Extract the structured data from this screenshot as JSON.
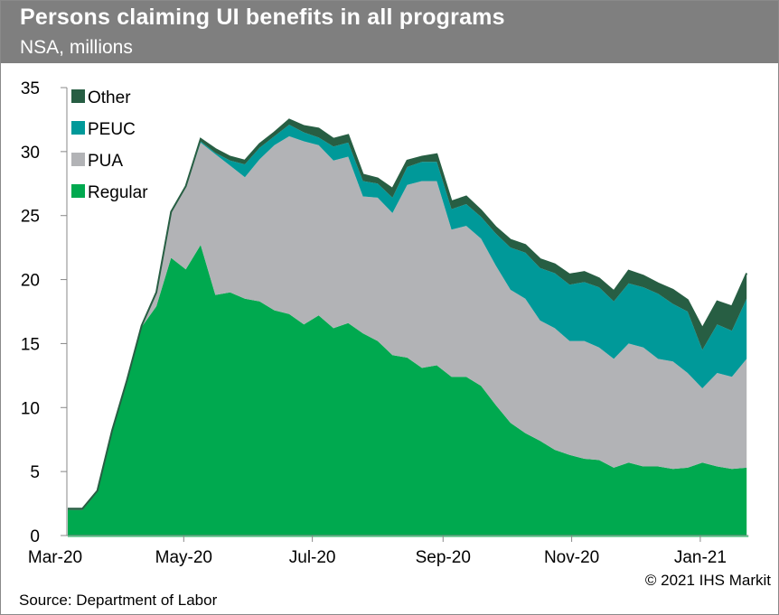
{
  "header": {
    "title": "Persons claiming UI benefits in all programs",
    "subtitle": "NSA, millions"
  },
  "footer": {
    "copyright": "© 2021 IHS Markit",
    "source": "Source: Department of Labor"
  },
  "chart_data": {
    "type": "area",
    "stacked": true,
    "title": "Persons claiming UI benefits in all programs",
    "subtitle": "NSA, millions",
    "ylim": [
      0,
      35
    ],
    "yticks": [
      0,
      5,
      10,
      15,
      20,
      25,
      30,
      35
    ],
    "xticks": [
      {
        "date": "2020-03-01",
        "label": "Mar-20"
      },
      {
        "date": "2020-05-01",
        "label": "May-20"
      },
      {
        "date": "2020-07-01",
        "label": "Jul-20"
      },
      {
        "date": "2020-09-01",
        "label": "Sep-20"
      },
      {
        "date": "2020-11-01",
        "label": "Nov-20"
      },
      {
        "date": "2021-01-01",
        "label": "Jan-21"
      }
    ],
    "grid": false,
    "legend_position": "top-left",
    "x_start": "2020-03-07",
    "x_frequency": "weekly",
    "series": [
      {
        "name": "Regular",
        "color": "#00A94F",
        "values": [
          2.0,
          2.0,
          3.4,
          8.1,
          12.0,
          16.3,
          17.9,
          21.7,
          20.8,
          22.7,
          18.8,
          19.0,
          18.5,
          18.3,
          17.6,
          17.3,
          16.5,
          17.2,
          16.2,
          16.6,
          15.8,
          15.2,
          14.1,
          13.9,
          13.1,
          13.3,
          12.4,
          12.4,
          11.7,
          10.2,
          8.8,
          8.0,
          7.4,
          6.7,
          6.3,
          6.0,
          5.9,
          5.3,
          5.7,
          5.4,
          5.4,
          5.2,
          5.3,
          5.7,
          5.4,
          5.2,
          5.3
        ]
      },
      {
        "name": "PUA",
        "color": "#B2B3B6",
        "values": [
          0,
          0,
          0,
          0,
          0,
          0,
          1.0,
          3.5,
          6.4,
          8.0,
          11.0,
          9.9,
          9.5,
          11.1,
          12.9,
          13.9,
          14.3,
          13.3,
          13.1,
          13.0,
          10.7,
          11.2,
          11.1,
          13.5,
          14.6,
          14.4,
          11.5,
          11.8,
          11.5,
          10.9,
          10.4,
          10.5,
          9.4,
          9.5,
          8.9,
          9.2,
          8.8,
          8.5,
          9.3,
          9.3,
          8.4,
          8.4,
          7.4,
          5.8,
          7.3,
          7.2,
          8.5
        ]
      },
      {
        "name": "PEUC",
        "color": "#009999",
        "values": [
          0,
          0,
          0,
          0,
          0,
          0,
          0,
          0,
          0,
          0.1,
          0.1,
          0.4,
          1.0,
          0.9,
          0.7,
          0.9,
          0.7,
          0.6,
          1.1,
          1.1,
          1.2,
          1.1,
          1.2,
          1.4,
          1.5,
          1.5,
          1.6,
          1.7,
          1.7,
          2.5,
          3.3,
          3.6,
          4.1,
          4.3,
          4.4,
          4.6,
          4.7,
          4.5,
          4.7,
          4.7,
          5.1,
          4.5,
          4.8,
          3.0,
          3.8,
          3.6,
          4.7
        ]
      },
      {
        "name": "Other",
        "color": "#275E43",
        "values": [
          0.1,
          0.1,
          0.1,
          0.1,
          0.1,
          0.1,
          0.1,
          0.1,
          0.1,
          0.2,
          0.3,
          0.3,
          0.3,
          0.3,
          0.3,
          0.4,
          0.5,
          0.7,
          0.6,
          0.6,
          0.5,
          0.4,
          0.7,
          0.5,
          0.4,
          0.6,
          0.6,
          0.6,
          0.5,
          0.5,
          0.6,
          0.6,
          0.7,
          0.7,
          0.8,
          0.8,
          0.7,
          0.8,
          1.0,
          0.9,
          0.8,
          1.1,
          0.9,
          1.7,
          1.8,
          1.9,
          2.0
        ]
      }
    ],
    "legend_order": [
      "Other",
      "PEUC",
      "PUA",
      "Regular"
    ]
  }
}
